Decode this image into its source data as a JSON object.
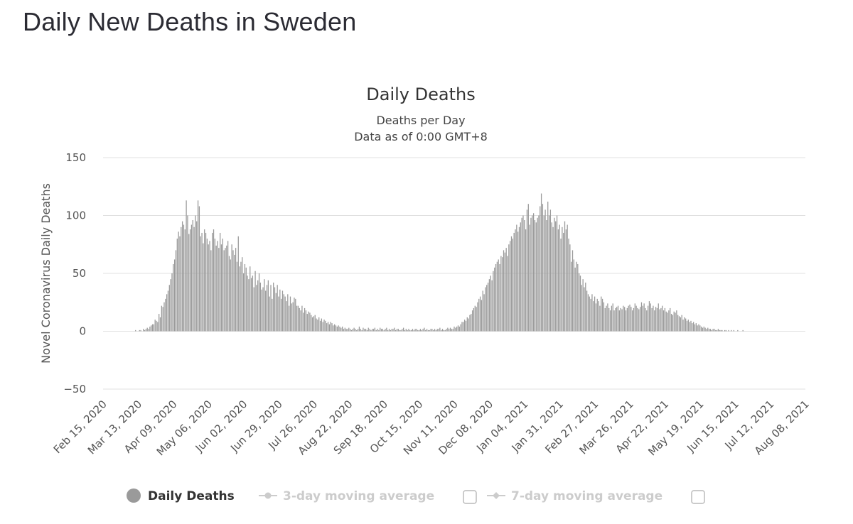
{
  "page": {
    "title": "Daily New Deaths in Sweden"
  },
  "colors": {
    "bar": "#9a9a9a",
    "grid": "#e0e0e0",
    "legend_inactive": "#cccccc"
  },
  "chart_data": {
    "type": "bar",
    "title": "Daily Deaths",
    "subtitle": "Deaths per Day",
    "subtitle2": "Data as of 0:00 GMT+8",
    "xlabel": "",
    "ylabel": "Novel Coronavirus Daily Deaths",
    "ylim": [
      -50,
      150
    ],
    "yticks": [
      150,
      100,
      50,
      0,
      -50
    ],
    "ytick_labels": [
      "150",
      "100",
      "50",
      "0",
      "−50"
    ],
    "xlim": [
      "2020-02-15",
      "2021-08-08"
    ],
    "xtick_labels": [
      "Feb 15, 2020",
      "Mar 13, 2020",
      "Apr 09, 2020",
      "May 06, 2020",
      "Jun 02, 2020",
      "Jun 29, 2020",
      "Jul 26, 2020",
      "Aug 22, 2020",
      "Sep 18, 2020",
      "Oct 15, 2020",
      "Nov 11, 2020",
      "Dec 08, 2020",
      "Jan 04, 2021",
      "Jan 31, 2021",
      "Feb 27, 2021",
      "Mar 26, 2021",
      "Apr 22, 2021",
      "May 19, 2021",
      "Jun 15, 2021",
      "Jul 12, 2021",
      "Aug 08, 2021"
    ],
    "grid": true,
    "legend": {
      "position": "bottom",
      "items": [
        {
          "label": "Daily Deaths",
          "active": true
        },
        {
          "label": "3-day moving average",
          "active": false
        },
        {
          "label": "7-day moving average",
          "active": false
        }
      ]
    },
    "series": [
      {
        "name": "Daily Deaths",
        "start_date": "2020-03-11",
        "values": [
          1,
          0,
          0,
          1,
          1,
          0,
          2,
          1,
          2,
          3,
          2,
          4,
          5,
          6,
          6,
          10,
          9,
          8,
          15,
          12,
          22,
          21,
          25,
          28,
          32,
          35,
          40,
          45,
          50,
          58,
          62,
          70,
          80,
          86,
          82,
          90,
          95,
          92,
          88,
          113,
          100,
          84,
          88,
          92,
          96,
          90,
          100,
          95,
          113,
          108,
          82,
          85,
          76,
          88,
          85,
          80,
          75,
          78,
          70,
          85,
          88,
          80,
          74,
          78,
          72,
          85,
          75,
          80,
          70,
          72,
          74,
          78,
          65,
          62,
          75,
          70,
          66,
          72,
          60,
          82,
          56,
          60,
          64,
          50,
          58,
          55,
          48,
          45,
          56,
          46,
          48,
          38,
          52,
          40,
          44,
          50,
          42,
          36,
          38,
          45,
          35,
          40,
          44,
          30,
          40,
          28,
          42,
          38,
          33,
          40,
          30,
          36,
          28,
          35,
          32,
          30,
          26,
          32,
          22,
          30,
          24,
          25,
          29,
          28,
          22,
          22,
          20,
          18,
          22,
          16,
          20,
          18,
          15,
          17,
          16,
          14,
          12,
          13,
          14,
          11,
          10,
          12,
          9,
          11,
          8,
          10,
          9,
          7,
          8,
          6,
          8,
          7,
          5,
          6,
          5,
          4,
          5,
          4,
          3,
          4,
          2,
          3,
          2,
          2,
          3,
          2,
          1,
          2,
          3,
          2,
          1,
          2,
          4,
          2,
          1,
          3,
          2,
          2,
          1,
          3,
          2,
          1,
          2,
          2,
          3,
          1,
          2,
          1,
          3,
          2,
          2,
          1,
          2,
          3,
          1,
          2,
          1,
          2,
          2,
          3,
          1,
          2,
          2,
          1,
          1,
          2,
          3,
          1,
          2,
          1,
          2,
          1,
          1,
          2,
          1,
          2,
          2,
          1,
          1,
          2,
          1,
          2,
          3,
          1,
          2,
          1,
          1,
          2,
          2,
          1,
          2,
          1,
          2,
          2,
          3,
          1,
          2,
          1,
          1,
          2,
          3,
          2,
          3,
          2,
          2,
          4,
          3,
          4,
          5,
          4,
          6,
          8,
          8,
          10,
          9,
          12,
          11,
          14,
          15,
          18,
          20,
          22,
          21,
          25,
          28,
          30,
          27,
          35,
          32,
          38,
          40,
          42,
          45,
          48,
          44,
          52,
          55,
          58,
          60,
          62,
          58,
          65,
          64,
          70,
          68,
          72,
          65,
          75,
          78,
          82,
          80,
          85,
          88,
          92,
          86,
          90,
          94,
          98,
          100,
          96,
          88,
          105,
          110,
          92,
          98,
          100,
          102,
          96,
          94,
          98,
          100,
          108,
          119,
          110,
          100,
          105,
          96,
          112,
          100,
          105,
          94,
          90,
          98,
          95,
          100,
          88,
          92,
          80,
          90,
          85,
          95,
          88,
          92,
          80,
          75,
          60,
          70,
          62,
          55,
          60,
          58,
          50,
          48,
          40,
          45,
          38,
          42,
          35,
          32,
          30,
          28,
          32,
          26,
          30,
          24,
          28,
          26,
          22,
          30,
          28,
          25,
          20,
          22,
          24,
          20,
          18,
          22,
          24,
          18,
          20,
          21,
          22,
          18,
          20,
          19,
          22,
          21,
          18,
          20,
          22,
          23,
          21,
          18,
          20,
          24,
          22,
          20,
          19,
          21,
          25,
          22,
          24,
          20,
          18,
          22,
          26,
          24,
          20,
          22,
          18,
          21,
          20,
          24,
          19,
          20,
          22,
          18,
          20,
          17,
          16,
          18,
          20,
          15,
          14,
          17,
          16,
          18,
          14,
          13,
          12,
          14,
          10,
          12,
          11,
          9,
          10,
          8,
          9,
          7,
          8,
          6,
          7,
          5,
          6,
          5,
          4,
          3,
          4,
          3,
          2,
          3,
          2,
          2,
          1,
          2,
          2,
          1,
          1,
          2,
          1,
          1,
          1,
          0,
          1,
          1,
          0,
          1,
          0,
          1,
          0,
          1,
          0,
          0,
          1,
          0,
          0,
          0,
          1,
          0
        ]
      }
    ]
  }
}
